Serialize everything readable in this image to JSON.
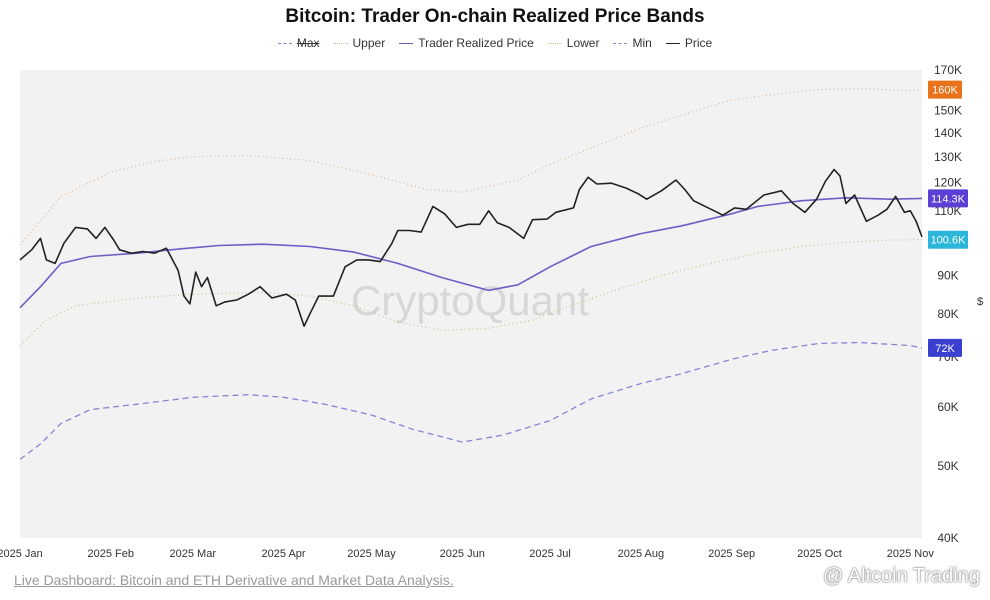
{
  "chart_data": {
    "type": "line",
    "title": "Bitcoin: Trader On-chain Realized Price Bands",
    "ylabel": "$",
    "y_scale": "log",
    "ylim": [
      40000,
      170000
    ],
    "x_range": [
      "2025-01-01",
      "2025-11-05"
    ],
    "grid": false,
    "legend_position": "top-center",
    "y_ticks": [
      {
        "v": 170000,
        "label": "170K"
      },
      {
        "v": 150000,
        "label": "150K"
      },
      {
        "v": 140000,
        "label": "140K"
      },
      {
        "v": 130000,
        "label": "130K"
      },
      {
        "v": 120000,
        "label": "120K"
      },
      {
        "v": 110000,
        "label": "110K"
      },
      {
        "v": 90000,
        "label": "90K"
      },
      {
        "v": 80000,
        "label": "80K"
      },
      {
        "v": 70000,
        "label": "70K"
      },
      {
        "v": 60000,
        "label": "60K"
      },
      {
        "v": 50000,
        "label": "50K"
      },
      {
        "v": 40000,
        "label": "40K"
      }
    ],
    "x_ticks": [
      {
        "date": "2025-01-01",
        "label": "2025 Jan"
      },
      {
        "date": "2025-02-01",
        "label": "2025 Feb"
      },
      {
        "date": "2025-03-01",
        "label": "2025 Mar"
      },
      {
        "date": "2025-04-01",
        "label": "2025 Apr"
      },
      {
        "date": "2025-05-01",
        "label": "2025 May"
      },
      {
        "date": "2025-06-01",
        "label": "2025 Jun"
      },
      {
        "date": "2025-07-01",
        "label": "2025 Jul"
      },
      {
        "date": "2025-08-01",
        "label": "2025 Aug"
      },
      {
        "date": "2025-09-01",
        "label": "2025 Sep"
      },
      {
        "date": "2025-10-01",
        "label": "2025 Oct"
      },
      {
        "date": "2025-11-01",
        "label": "2025 Nov"
      }
    ],
    "badges": [
      {
        "label": "160K",
        "value": 160000,
        "color": "#e8731a"
      },
      {
        "label": "114.3K",
        "value": 114300,
        "color": "#5b3fd4"
      },
      {
        "label": "100.6K",
        "value": 100600,
        "color": "#2bb5d8"
      },
      {
        "label": "72K",
        "value": 72000,
        "color": "#3b3fd0"
      }
    ],
    "series": [
      {
        "name": "Max",
        "color": "#8585d6",
        "dash": "6 4",
        "points": [
          [
            "2025-01-01",
            51000
          ],
          [
            "2025-01-08",
            53500
          ],
          [
            "2025-01-15",
            57000
          ],
          [
            "2025-01-25",
            59500
          ],
          [
            "2025-02-10",
            60500
          ],
          [
            "2025-03-01",
            61800
          ],
          [
            "2025-03-20",
            62300
          ],
          [
            "2025-04-01",
            61800
          ],
          [
            "2025-04-15",
            60500
          ],
          [
            "2025-05-01",
            58500
          ],
          [
            "2025-05-15",
            56000
          ],
          [
            "2025-06-01",
            53800
          ],
          [
            "2025-06-15",
            55000
          ],
          [
            "2025-07-01",
            57500
          ],
          [
            "2025-07-15",
            61500
          ],
          [
            "2025-08-01",
            64500
          ],
          [
            "2025-08-15",
            66500
          ],
          [
            "2025-09-01",
            69500
          ],
          [
            "2025-09-15",
            71500
          ],
          [
            "2025-10-01",
            73000
          ],
          [
            "2025-10-15",
            73200
          ],
          [
            "2025-11-01",
            72500
          ],
          [
            "2025-11-05",
            72000
          ]
        ]
      },
      {
        "name": "Upper",
        "color": "#e0b898",
        "dash": "1 3",
        "points": [
          [
            "2025-01-01",
            99000
          ],
          [
            "2025-01-15",
            115000
          ],
          [
            "2025-02-01",
            124000
          ],
          [
            "2025-02-15",
            128000
          ],
          [
            "2025-03-01",
            130000
          ],
          [
            "2025-03-20",
            130500
          ],
          [
            "2025-04-10",
            128500
          ],
          [
            "2025-05-01",
            123000
          ],
          [
            "2025-05-20",
            117500
          ],
          [
            "2025-06-01",
            116500
          ],
          [
            "2025-06-20",
            121000
          ],
          [
            "2025-07-01",
            127000
          ],
          [
            "2025-07-20",
            136000
          ],
          [
            "2025-08-01",
            142000
          ],
          [
            "2025-08-20",
            150000
          ],
          [
            "2025-09-01",
            155000
          ],
          [
            "2025-09-20",
            158500
          ],
          [
            "2025-10-01",
            160000
          ],
          [
            "2025-10-15",
            160500
          ],
          [
            "2025-11-01",
            159500
          ],
          [
            "2025-11-05",
            160000
          ]
        ]
      },
      {
        "name": "Trader Realized Price",
        "color": "#6a5fc4",
        "dash": "",
        "points": [
          [
            "2025-01-01",
            81500
          ],
          [
            "2025-01-08",
            87000
          ],
          [
            "2025-01-15",
            93500
          ],
          [
            "2025-01-25",
            95500
          ],
          [
            "2025-02-10",
            96500
          ],
          [
            "2025-02-25",
            97800
          ],
          [
            "2025-03-10",
            98800
          ],
          [
            "2025-03-25",
            99200
          ],
          [
            "2025-04-10",
            98500
          ],
          [
            "2025-04-25",
            96800
          ],
          [
            "2025-05-10",
            93500
          ],
          [
            "2025-05-25",
            89500
          ],
          [
            "2025-06-10",
            86000
          ],
          [
            "2025-06-20",
            87500
          ],
          [
            "2025-07-01",
            92500
          ],
          [
            "2025-07-15",
            98500
          ],
          [
            "2025-08-01",
            102500
          ],
          [
            "2025-08-15",
            105000
          ],
          [
            "2025-09-01",
            109000
          ],
          [
            "2025-09-10",
            111500
          ],
          [
            "2025-09-25",
            113500
          ],
          [
            "2025-10-10",
            114500
          ],
          [
            "2025-10-25",
            114000
          ],
          [
            "2025-11-05",
            114300
          ]
        ]
      },
      {
        "name": "Lower",
        "color": "#d4c090",
        "dash": "1 3",
        "points": [
          [
            "2025-01-01",
            72500
          ],
          [
            "2025-01-10",
            78500
          ],
          [
            "2025-01-20",
            82000
          ],
          [
            "2025-02-10",
            84000
          ],
          [
            "2025-03-01",
            85000
          ],
          [
            "2025-03-25",
            85500
          ],
          [
            "2025-04-10",
            84500
          ],
          [
            "2025-04-25",
            82000
          ],
          [
            "2025-05-10",
            78000
          ],
          [
            "2025-05-25",
            76000
          ],
          [
            "2025-06-10",
            76500
          ],
          [
            "2025-06-25",
            78500
          ],
          [
            "2025-07-10",
            82500
          ],
          [
            "2025-07-25",
            86500
          ],
          [
            "2025-08-10",
            90500
          ],
          [
            "2025-08-25",
            93500
          ],
          [
            "2025-09-10",
            96500
          ],
          [
            "2025-09-25",
            98500
          ],
          [
            "2025-10-10",
            99800
          ],
          [
            "2025-10-25",
            100500
          ],
          [
            "2025-11-05",
            100600
          ]
        ]
      },
      {
        "name": "Min",
        "color": "#8585d6",
        "dash": "6 4",
        "points": []
      },
      {
        "name": "Price",
        "color": "#222222",
        "dash": "",
        "points": [
          [
            "2025-01-01",
            94500
          ],
          [
            "2025-01-05",
            97500
          ],
          [
            "2025-01-08",
            101000
          ],
          [
            "2025-01-10",
            94500
          ],
          [
            "2025-01-13",
            93500
          ],
          [
            "2025-01-16",
            99500
          ],
          [
            "2025-01-20",
            104500
          ],
          [
            "2025-01-24",
            104000
          ],
          [
            "2025-01-27",
            101000
          ],
          [
            "2025-01-30",
            104500
          ],
          [
            "2025-02-02",
            100500
          ],
          [
            "2025-02-04",
            97500
          ],
          [
            "2025-02-08",
            96500
          ],
          [
            "2025-02-12",
            97000
          ],
          [
            "2025-02-16",
            96500
          ],
          [
            "2025-02-20",
            98000
          ],
          [
            "2025-02-24",
            91500
          ],
          [
            "2025-02-26",
            84500
          ],
          [
            "2025-02-28",
            82500
          ],
          [
            "2025-03-02",
            91000
          ],
          [
            "2025-03-04",
            87000
          ],
          [
            "2025-03-06",
            89500
          ],
          [
            "2025-03-09",
            82000
          ],
          [
            "2025-03-12",
            83000
          ],
          [
            "2025-03-16",
            83500
          ],
          [
            "2025-03-20",
            85000
          ],
          [
            "2025-03-24",
            87000
          ],
          [
            "2025-03-28",
            84000
          ],
          [
            "2025-04-02",
            85000
          ],
          [
            "2025-04-05",
            83500
          ],
          [
            "2025-04-08",
            77000
          ],
          [
            "2025-04-10",
            80000
          ],
          [
            "2025-04-13",
            84500
          ],
          [
            "2025-04-18",
            84500
          ],
          [
            "2025-04-22",
            92500
          ],
          [
            "2025-04-26",
            94500
          ],
          [
            "2025-04-30",
            94500
          ],
          [
            "2025-05-04",
            94000
          ],
          [
            "2025-05-08",
            99500
          ],
          [
            "2025-05-10",
            103500
          ],
          [
            "2025-05-14",
            103500
          ],
          [
            "2025-05-18",
            103000
          ],
          [
            "2025-05-22",
            111500
          ],
          [
            "2025-05-26",
            109000
          ],
          [
            "2025-05-30",
            104500
          ],
          [
            "2025-06-03",
            105500
          ],
          [
            "2025-06-07",
            105500
          ],
          [
            "2025-06-10",
            110000
          ],
          [
            "2025-06-13",
            106000
          ],
          [
            "2025-06-17",
            104500
          ],
          [
            "2025-06-22",
            101000
          ],
          [
            "2025-06-25",
            107000
          ],
          [
            "2025-06-30",
            107200
          ],
          [
            "2025-07-03",
            109500
          ],
          [
            "2025-07-09",
            111000
          ],
          [
            "2025-07-11",
            117500
          ],
          [
            "2025-07-14",
            122000
          ],
          [
            "2025-07-17",
            119500
          ],
          [
            "2025-07-22",
            119800
          ],
          [
            "2025-07-27",
            118000
          ],
          [
            "2025-07-31",
            116000
          ],
          [
            "2025-08-03",
            114000
          ],
          [
            "2025-08-08",
            117000
          ],
          [
            "2025-08-13",
            121000
          ],
          [
            "2025-08-16",
            117500
          ],
          [
            "2025-08-19",
            113500
          ],
          [
            "2025-08-25",
            110500
          ],
          [
            "2025-08-29",
            108500
          ],
          [
            "2025-09-02",
            111000
          ],
          [
            "2025-09-06",
            110500
          ],
          [
            "2025-09-12",
            115500
          ],
          [
            "2025-09-18",
            117000
          ],
          [
            "2025-09-22",
            112500
          ],
          [
            "2025-09-26",
            109500
          ],
          [
            "2025-09-30",
            114000
          ],
          [
            "2025-10-03",
            120500
          ],
          [
            "2025-10-06",
            125000
          ],
          [
            "2025-10-08",
            122500
          ],
          [
            "2025-10-10",
            112500
          ],
          [
            "2025-10-13",
            115500
          ],
          [
            "2025-10-17",
            106500
          ],
          [
            "2025-10-21",
            108500
          ],
          [
            "2025-10-24",
            110500
          ],
          [
            "2025-10-27",
            115000
          ],
          [
            "2025-10-30",
            109500
          ],
          [
            "2025-11-01",
            110000
          ],
          [
            "2025-11-03",
            106500
          ],
          [
            "2025-11-05",
            101500
          ]
        ]
      }
    ]
  },
  "watermark_center": "CryptoQuant",
  "footer_link": "Live Dashboard: Bitcoin and ETH Derivative and Market Data Analysis.",
  "watermark_corner": "@ Altcoin Trading"
}
